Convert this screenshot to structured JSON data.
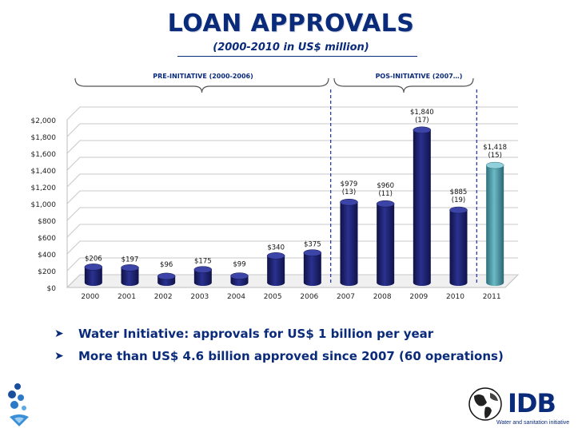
{
  "chart_data": {
    "type": "bar",
    "title": "LOAN APPROVALS",
    "subtitle": "(2000-2010 in US$ million)",
    "categories": [
      "2000",
      "2001",
      "2002",
      "2003",
      "2004",
      "2005",
      "2006",
      "2007",
      "2008",
      "2009",
      "2010",
      "2011"
    ],
    "values": [
      206,
      197,
      96,
      175,
      99,
      340,
      375,
      979,
      960,
      1840,
      885,
      1418
    ],
    "bar_labels": [
      "$206",
      "$197",
      "$96",
      "$175",
      "$99",
      "$340",
      "$375",
      "$979",
      "$960",
      "$1,840",
      "$885",
      "$1,418"
    ],
    "operations": [
      "",
      "",
      "",
      "",
      "",
      "",
      "",
      "(13)",
      "(11)",
      "(17)",
      "(19)",
      "(15)"
    ],
    "ylim": [
      0,
      2000
    ],
    "yticks": [
      0,
      200,
      400,
      600,
      800,
      1000,
      1200,
      1400,
      1600,
      1800,
      2000
    ],
    "ytick_labels": [
      "$0",
      "$200",
      "$400",
      "$600",
      "$800",
      "$1,000",
      "$1,200",
      "$1,400",
      "$1,600",
      "$1,800",
      "$2,000"
    ],
    "xlabel": "",
    "ylabel": "",
    "grid": true,
    "periods": [
      {
        "label": "PRE-INITIATIVE (2000-2006)",
        "from": "2000",
        "to": "2006"
      },
      {
        "label": "POS-INITIATIVE (2007…)",
        "from": "2007",
        "to": "2010"
      }
    ],
    "colors": {
      "bar": "#1b1f6b",
      "highlight": "#4a9aa8",
      "divider": "#2a3cb0"
    }
  },
  "bullets": [
    "Water Initiative: approvals for US$ 1 billion per year",
    "More than US$ 4.6 billion approved since 2007 (60 operations)"
  ],
  "logo": {
    "name": "IDB",
    "tagline": "Water and sanitation initiative"
  }
}
